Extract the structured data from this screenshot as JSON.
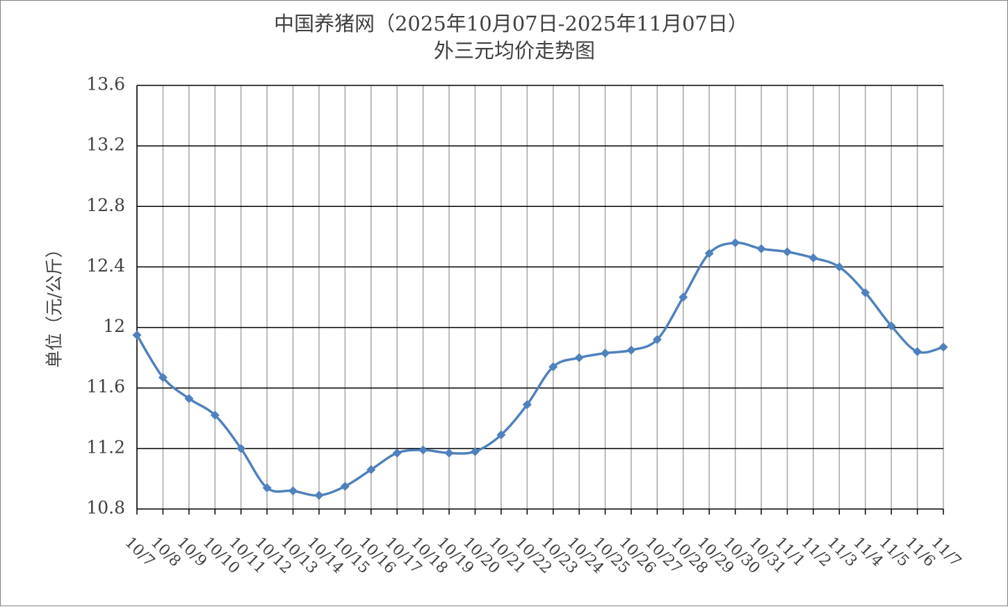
{
  "chart_data": {
    "type": "line",
    "title": "中国养猪网（2025年10月07日-2025年11月07日）",
    "subtitle": "外三元均价走势图",
    "y_label": "单位（元/公斤）",
    "categories": [
      "10/7",
      "10/8",
      "10/9",
      "10/10",
      "10/11",
      "10/12",
      "10/13",
      "10/14",
      "10/15",
      "10/16",
      "10/17",
      "10/18",
      "10/19",
      "10/20",
      "10/21",
      "10/22",
      "10/23",
      "10/24",
      "10/25",
      "10/26",
      "10/27",
      "10/28",
      "10/29",
      "10/30",
      "10/31",
      "11/1",
      "11/2",
      "11/3",
      "11/4",
      "11/5",
      "11/6",
      "11/7"
    ],
    "series": [
      {
        "name": "外三元均价",
        "color": "#4f81bd",
        "values": [
          11.95,
          11.67,
          11.53,
          11.42,
          11.2,
          10.94,
          10.92,
          10.89,
          10.95,
          11.06,
          11.17,
          11.19,
          11.17,
          11.18,
          11.29,
          11.49,
          11.74,
          11.8,
          11.83,
          11.85,
          11.92,
          12.2,
          12.49,
          12.56,
          12.52,
          12.5,
          12.46,
          12.4,
          12.23,
          12.01,
          11.84,
          11.87
        ]
      }
    ],
    "ylim": [
      10.8,
      13.6
    ],
    "yticks": [
      10.8,
      11.2,
      11.6,
      12,
      12.4,
      12.8,
      13.2,
      13.6
    ],
    "grid": true
  }
}
